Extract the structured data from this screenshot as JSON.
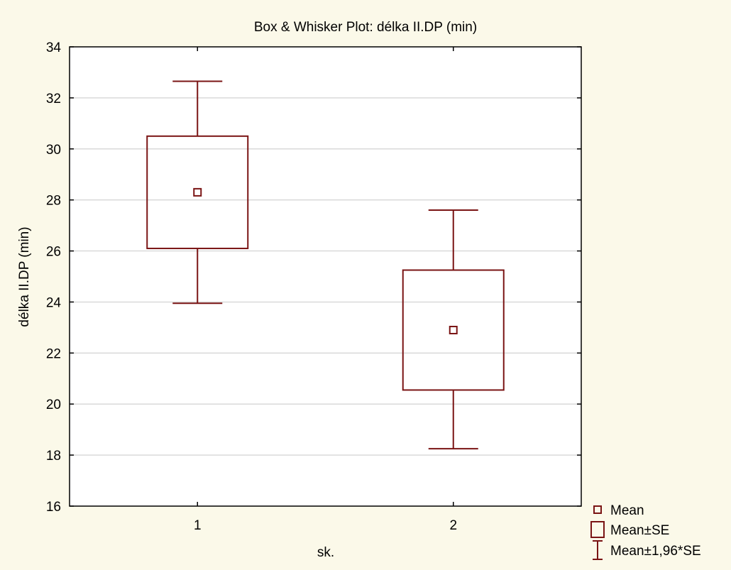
{
  "chart_data": {
    "type": "box",
    "title": "Box & Whisker Plot: délka II.DP (min)",
    "xlabel": "sk.",
    "ylabel": "délka II.DP (min)",
    "ylim": [
      16,
      34
    ],
    "yticks": [
      "16",
      "18",
      "20",
      "22",
      "24",
      "26",
      "28",
      "30",
      "32",
      "34"
    ],
    "categories": [
      "1",
      "2"
    ],
    "grid": "horizontal",
    "legend_position": "bottom-right",
    "color": "#7a1414",
    "groups": [
      {
        "category": "1",
        "mean": 28.3,
        "box_low": 26.1,
        "box_high": 30.5,
        "whisker_low": 23.95,
        "whisker_high": 32.65
      },
      {
        "category": "2",
        "mean": 22.9,
        "box_low": 20.55,
        "box_high": 25.25,
        "whisker_low": 18.25,
        "whisker_high": 27.6
      }
    ],
    "legend": [
      {
        "symbol": "mean",
        "label": "Mean"
      },
      {
        "symbol": "box",
        "label": "Mean±SE"
      },
      {
        "symbol": "whisker",
        "label": "Mean±1,96*SE"
      }
    ]
  }
}
